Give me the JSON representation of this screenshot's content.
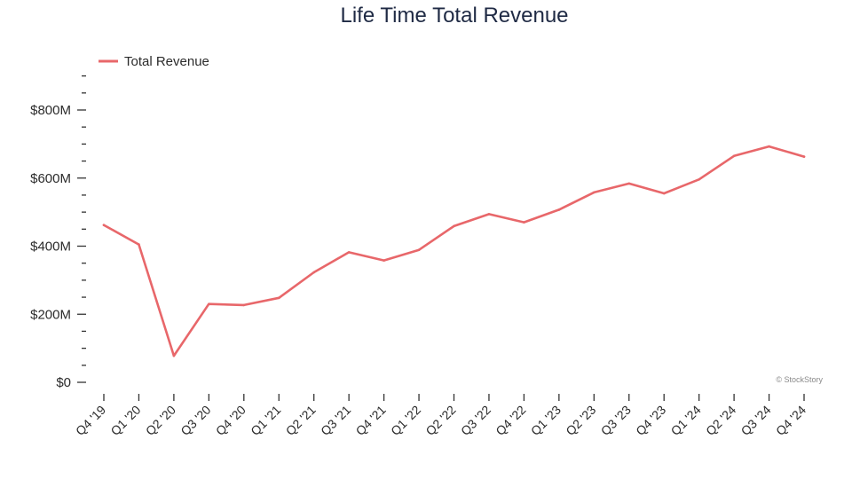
{
  "chart_data": {
    "type": "line",
    "title": "Life Time Total Revenue",
    "xlabel": "",
    "ylabel": "",
    "categories": [
      "Q4 '19",
      "Q1 '20",
      "Q2 '20",
      "Q3 '20",
      "Q4 '20",
      "Q1 '21",
      "Q2 '21",
      "Q3 '21",
      "Q4 '21",
      "Q1 '22",
      "Q2 '22",
      "Q3 '22",
      "Q4 '22",
      "Q1 '23",
      "Q2 '23",
      "Q3 '23",
      "Q4 '23",
      "Q1 '24",
      "Q2 '24",
      "Q3 '24",
      "Q4 '24"
    ],
    "series": [
      {
        "name": "Total Revenue",
        "values": [
          462,
          405,
          78,
          230,
          227,
          248,
          323,
          382,
          358,
          389,
          459,
          494,
          470,
          507,
          558,
          584,
          555,
          596,
          665,
          693,
          663
        ]
      }
    ],
    "ylim": [
      0,
      800
    ],
    "yticks": [
      {
        "value": 0,
        "label": "$0"
      },
      {
        "value": 200,
        "label": "$200M"
      },
      {
        "value": 400,
        "label": "$400M"
      },
      {
        "value": 600,
        "label": "$600M"
      },
      {
        "value": 800,
        "label": "$800M"
      }
    ],
    "minor_tick_step": 50,
    "grid": false,
    "legend_position": "top-left",
    "line_color": "#e8676a",
    "credit": "© StockStory"
  }
}
